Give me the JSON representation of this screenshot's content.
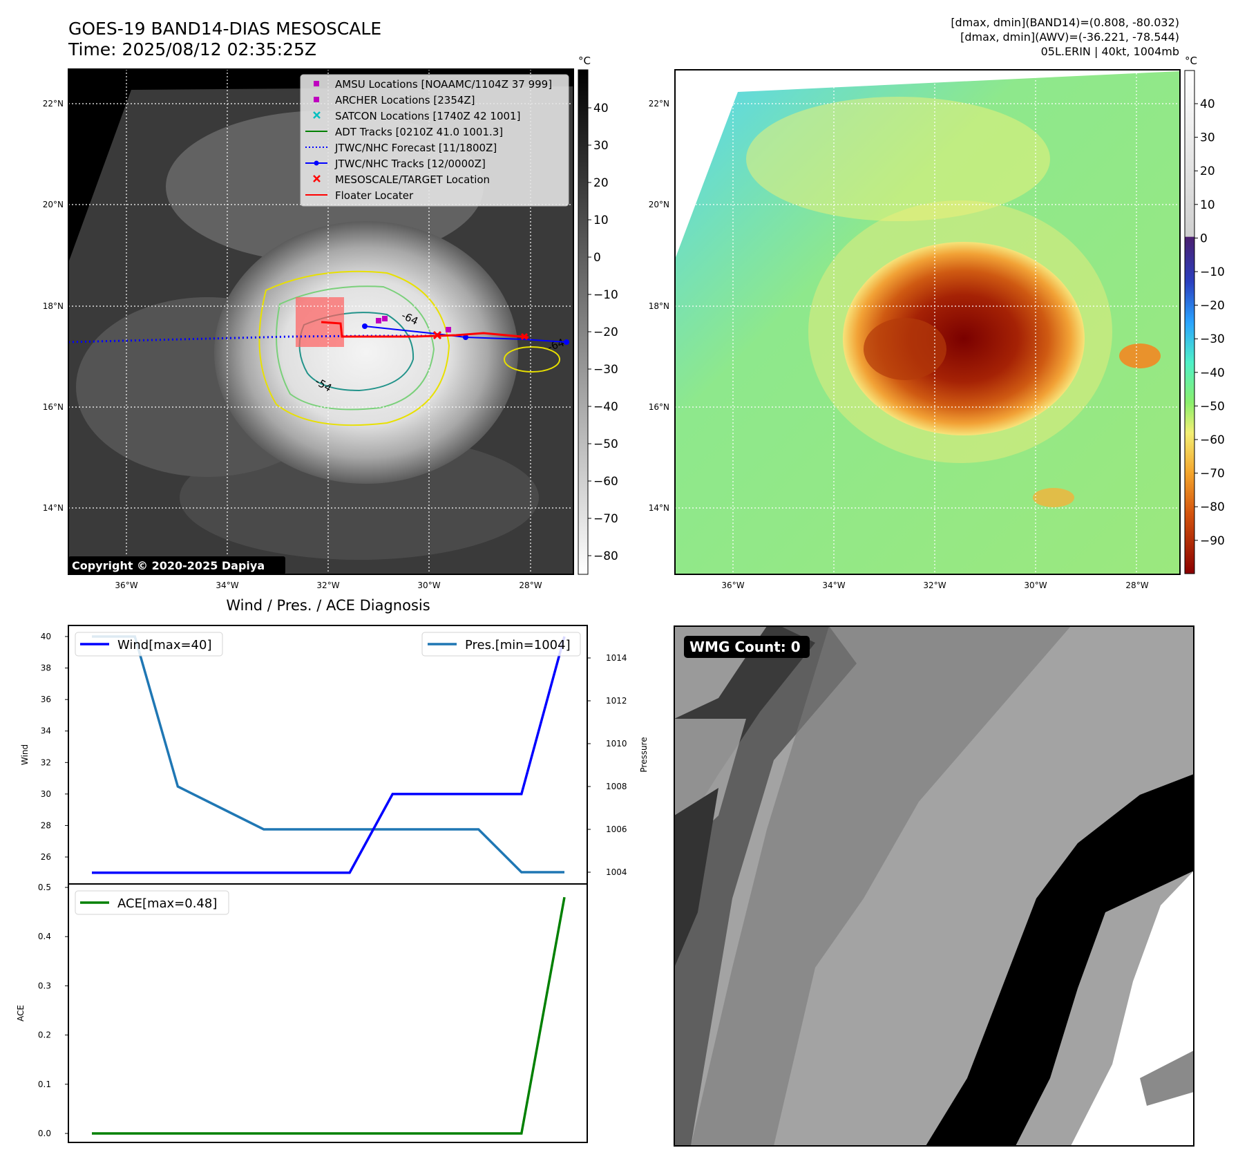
{
  "header": {
    "title": "GOES-19 BAND14-DIAS MESOSCALE",
    "time": "Time: 2025/08/12 02:35:25Z",
    "info_line1": "[dmax, dmin](BAND14)=(0.808, -80.032)",
    "info_line2": "[dmax, dmin](AWV)=(-36.221, -78.544)",
    "info_line3": "05L.ERIN | 40kt, 1004mb"
  },
  "map_axes": {
    "lon_ticks": [
      "36°W",
      "34°W",
      "32°W",
      "30°W",
      "28°W"
    ],
    "lat_ticks": [
      "22°N",
      "20°N",
      "18°N",
      "16°N",
      "14°N"
    ]
  },
  "ir_panel": {
    "copyright": "Copyright © 2020-2025 Dapiya",
    "colorbar_unit": "°C",
    "colorbar_ticks": [
      "40",
      "30",
      "20",
      "10",
      "0",
      "−10",
      "−20",
      "−30",
      "−40",
      "−50",
      "−60",
      "−70",
      "−80"
    ],
    "contour_labels": [
      "-64",
      "-54",
      "-64"
    ],
    "legend": [
      {
        "label": "AMSU Locations [NOAAMC/1104Z 37 999]",
        "marker": "square",
        "color": "#bf00bf"
      },
      {
        "label": "ARCHER Locations [2354Z]",
        "marker": "square",
        "color": "#bf00bf"
      },
      {
        "label": "SATCON Locations [1740Z 42 1001]",
        "marker": "x",
        "color": "#00bfbf"
      },
      {
        "label": "ADT Tracks [0210Z 41.0 1001.3]",
        "marker": "line",
        "color": "#008000"
      },
      {
        "label": "JTWC/NHC Forecast [11/1800Z]",
        "marker": "dotted",
        "color": "#0000ff"
      },
      {
        "label": "JTWC/NHC Tracks [12/0000Z]",
        "marker": "line-dot",
        "color": "#0000ff"
      },
      {
        "label": "MESOSCALE/TARGET Location",
        "marker": "x",
        "color": "#ff0000"
      },
      {
        "label": "Floater Locater",
        "marker": "line",
        "color": "#ff0000"
      }
    ]
  },
  "awv_panel": {
    "colorbar_unit": "°C",
    "colorbar_ticks": [
      "40",
      "30",
      "20",
      "10",
      "0",
      "−10",
      "−20",
      "−30",
      "−40",
      "−50",
      "−60",
      "−70",
      "−80",
      "−90"
    ]
  },
  "diagnosis": {
    "title": "Wind / Pres. / ACE Diagnosis",
    "wind_axis_label": "Wind",
    "pressure_axis_label": "Pressure",
    "ace_axis_label": "ACE",
    "wind_legend": "Wind[max=40]",
    "pres_legend": "Pres.[min=1004]",
    "ace_legend": "ACE[max=0.48]",
    "wind_ticks": [
      "40",
      "38",
      "36",
      "34",
      "32",
      "30",
      "28",
      "26"
    ],
    "pres_ticks": [
      "1014",
      "1012",
      "1010",
      "1008",
      "1006",
      "1004"
    ],
    "ace_ticks": [
      "0.5",
      "0.4",
      "0.3",
      "0.2",
      "0.1",
      "0.0"
    ]
  },
  "wmg_panel": {
    "label": "WMG Count: 0"
  },
  "colors": {
    "wind": "#0000ff",
    "pressure": "#1f77b4",
    "ace": "#008000",
    "track_red": "#ff0000"
  },
  "chart_data": [
    {
      "type": "line",
      "title": "Wind / Pres. / ACE Diagnosis",
      "x": [
        0,
        1,
        2,
        3,
        4,
        5,
        6,
        7,
        8,
        9,
        10,
        11
      ],
      "series": [
        {
          "name": "Wind[max=40]",
          "axis": "left",
          "values": [
            25,
            25,
            25,
            25,
            25,
            25,
            25,
            30,
            30,
            30,
            30,
            40
          ]
        },
        {
          "name": "Pres.[min=1004]",
          "axis": "right",
          "values": [
            1015,
            1015,
            1008,
            1007,
            1006,
            1006,
            1006,
            1006,
            1006,
            1006,
            1004,
            1004
          ]
        }
      ],
      "ylabel": "Wind",
      "y2label": "Pressure",
      "ylim": [
        25,
        40.7
      ],
      "y2lim": [
        1003.5,
        1015.5
      ]
    },
    {
      "type": "line",
      "x": [
        0,
        1,
        2,
        3,
        4,
        5,
        6,
        7,
        8,
        9,
        10,
        11
      ],
      "series": [
        {
          "name": "ACE[max=0.48]",
          "values": [
            0,
            0,
            0,
            0,
            0,
            0,
            0,
            0,
            0,
            0,
            0,
            0.48
          ]
        }
      ],
      "ylabel": "ACE",
      "ylim": [
        -0.02,
        0.5
      ]
    }
  ]
}
